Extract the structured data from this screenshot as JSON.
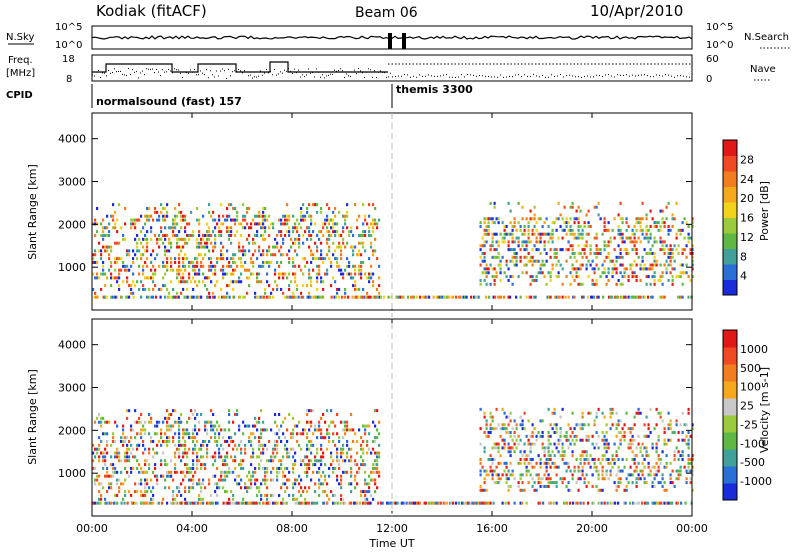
{
  "header": {
    "station": "Kodiak (fitACF)",
    "beam": "Beam 06",
    "date": "10/Apr/2010"
  },
  "strip_nsky": {
    "left_label": "N.Sky",
    "right_label": "N.Search",
    "left_ticks": [
      "10^5",
      "10^0"
    ],
    "right_ticks": [
      "10^5",
      "10^0"
    ]
  },
  "strip_freq": {
    "left_label_top": "Freq.",
    "left_label_bottom": "[MHz]",
    "right_label": "Nave",
    "left_ticks": [
      "18",
      "8"
    ],
    "right_ticks": [
      "60",
      "0"
    ]
  },
  "cpid": {
    "label": "CPID",
    "modes": [
      {
        "start_hour": 0.0,
        "text": "normalsound (fast) 157"
      },
      {
        "start_hour": 12.0,
        "text": "themis 3300"
      }
    ]
  },
  "xaxis": {
    "label": "Time UT",
    "tick_labels": [
      "00:00",
      "04:00",
      "08:00",
      "12:00",
      "16:00",
      "20:00",
      "00:00"
    ],
    "range_hours": [
      0,
      24
    ]
  },
  "chart_data": [
    {
      "type": "heatmap",
      "title": "",
      "ylabel": "Slant Range [km]",
      "xlabel": "",
      "x_range_hours": [
        0,
        24
      ],
      "ylim": [
        0,
        4600
      ],
      "y_ticks": [
        "1000",
        "2000",
        "3000",
        "4000"
      ],
      "colorbar": {
        "label": "Power [dB]",
        "tick_labels": [
          "4",
          "8",
          "12",
          "16",
          "20",
          "24",
          "28"
        ],
        "colors": [
          "#1a2bd9",
          "#2a6fd6",
          "#3fa19a",
          "#5fb844",
          "#9bcb3a",
          "#f2d21a",
          "#f5a81b",
          "#f27d1f",
          "#ef4a21",
          "#e01818"
        ]
      },
      "scatter_regions": [
        {
          "hours": [
            0.0,
            11.5
          ],
          "ranges": [
            300,
            2500
          ]
        },
        {
          "hours": [
            15.5,
            24.0
          ],
          "ranges": [
            600,
            2500
          ]
        }
      ]
    },
    {
      "type": "heatmap",
      "title": "",
      "ylabel": "Slant Range [km]",
      "xlabel": "Time UT",
      "x_range_hours": [
        0,
        24
      ],
      "ylim": [
        0,
        4600
      ],
      "y_ticks": [
        "1000",
        "2000",
        "3000",
        "4000"
      ],
      "colorbar": {
        "label": "Velocity [m s-1]",
        "tick_labels": [
          "1000",
          "500",
          "100",
          "25",
          "-25",
          "-100",
          "-500",
          "-1000"
        ],
        "colors": [
          "#1a2bd9",
          "#2a6fd6",
          "#3fa19a",
          "#5fb844",
          "#9bcb3a",
          "#c8c8c8",
          "#f5a81b",
          "#f27d1f",
          "#ef4a21",
          "#e01818"
        ]
      },
      "scatter_regions": [
        {
          "hours": [
            0.0,
            11.5
          ],
          "ranges": [
            300,
            2500
          ]
        },
        {
          "hours": [
            15.5,
            24.0
          ],
          "ranges": [
            600,
            2500
          ]
        }
      ]
    }
  ]
}
